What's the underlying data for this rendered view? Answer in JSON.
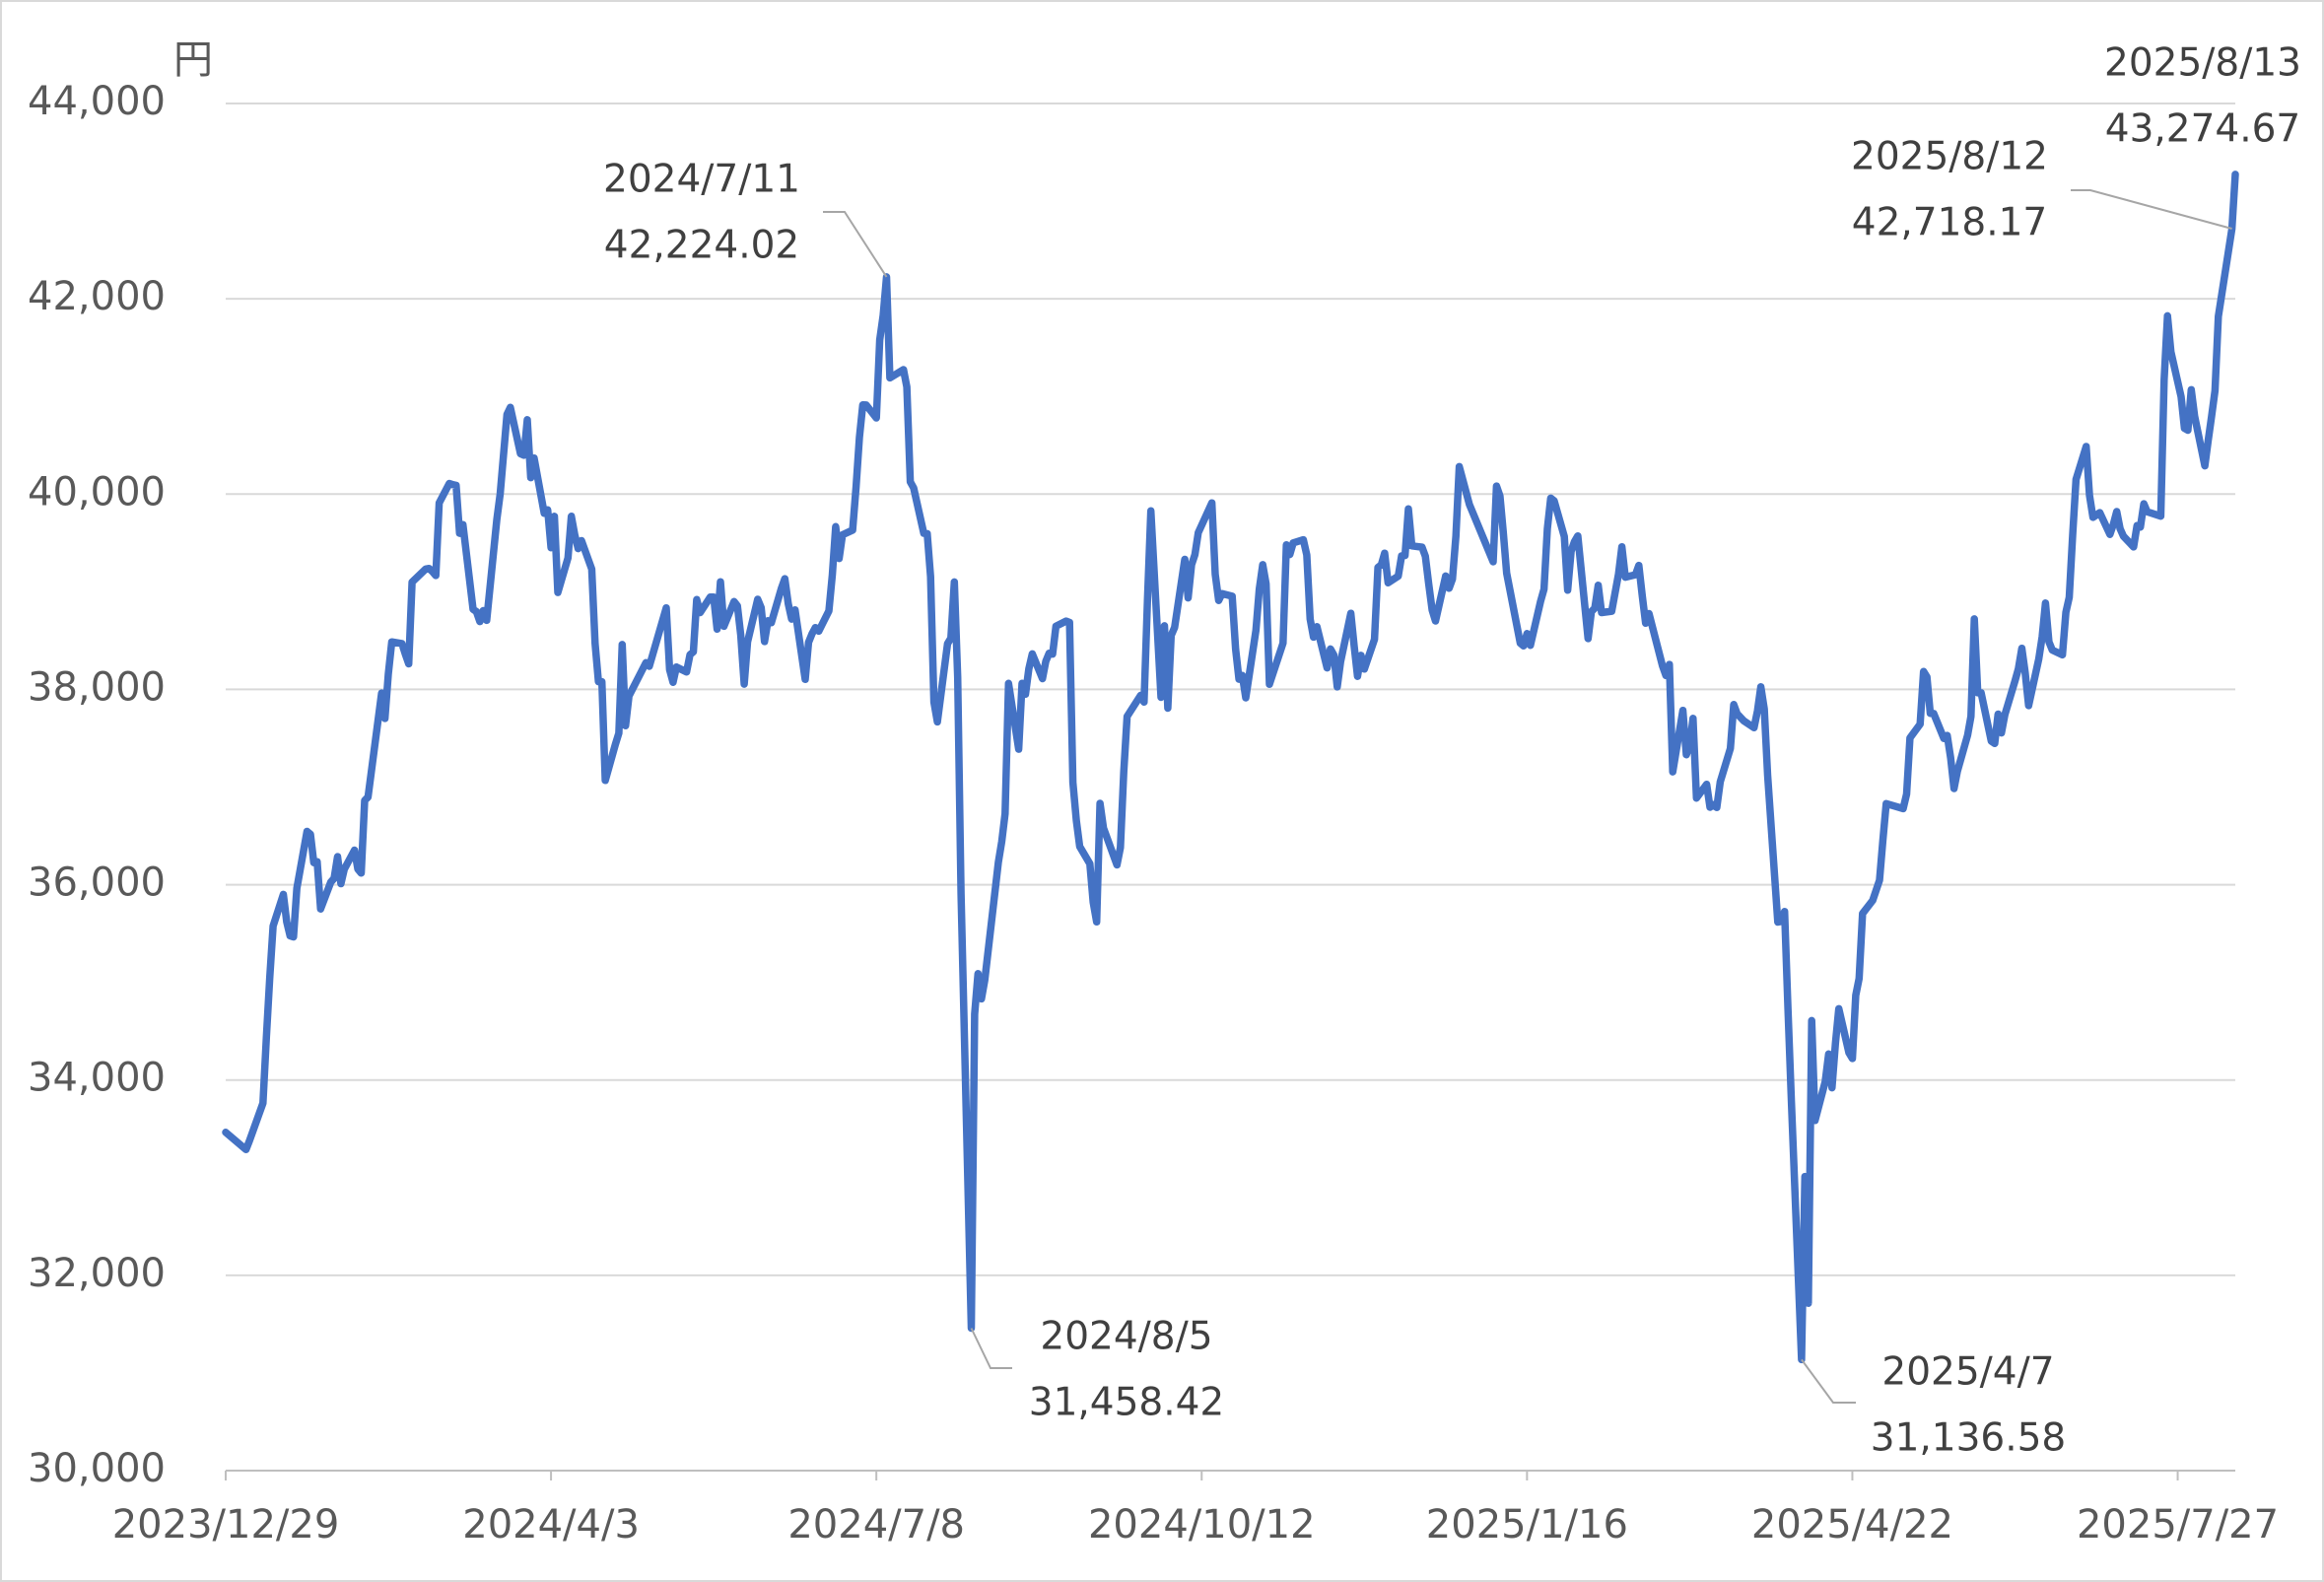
{
  "chart_data": {
    "type": "line",
    "y_label": "円",
    "x": [
      "2023/12/29",
      "2024/1/4",
      "2024/1/5",
      "2024/1/9",
      "2024/1/10",
      "2024/1/11",
      "2024/1/12",
      "2024/1/15",
      "2024/1/16",
      "2024/1/17",
      "2024/1/18",
      "2024/1/19",
      "2024/1/22",
      "2024/1/23",
      "2024/1/24",
      "2024/1/25",
      "2024/1/26",
      "2024/1/29",
      "2024/1/30",
      "2024/1/31",
      "2024/2/1",
      "2024/2/2",
      "2024/2/5",
      "2024/2/6",
      "2024/2/7",
      "2024/2/8",
      "2024/2/9",
      "2024/2/13",
      "2024/2/14",
      "2024/2/15",
      "2024/2/16",
      "2024/2/19",
      "2024/2/20",
      "2024/2/21",
      "2024/2/22",
      "2024/2/26",
      "2024/2/27",
      "2024/2/28",
      "2024/2/29",
      "2024/3/1",
      "2024/3/4",
      "2024/3/5",
      "2024/3/6",
      "2024/3/7",
      "2024/3/8",
      "2024/3/11",
      "2024/3/12",
      "2024/3/13",
      "2024/3/14",
      "2024/3/15",
      "2024/3/18",
      "2024/3/19",
      "2024/3/21",
      "2024/3/22",
      "2024/3/25",
      "2024/3/26",
      "2024/3/27",
      "2024/3/28",
      "2024/3/29",
      "2024/4/1",
      "2024/4/2",
      "2024/4/3",
      "2024/4/4",
      "2024/4/5",
      "2024/4/8",
      "2024/4/9",
      "2024/4/10",
      "2024/4/11",
      "2024/4/12",
      "2024/4/15",
      "2024/4/16",
      "2024/4/17",
      "2024/4/18",
      "2024/4/19",
      "2024/4/22",
      "2024/4/23",
      "2024/4/24",
      "2024/4/25",
      "2024/4/26",
      "2024/5/1",
      "2024/5/2",
      "2024/5/7",
      "2024/5/8",
      "2024/5/9",
      "2024/5/10",
      "2024/5/13",
      "2024/5/14",
      "2024/5/15",
      "2024/5/16",
      "2024/5/17",
      "2024/5/20",
      "2024/5/21",
      "2024/5/22",
      "2024/5/23",
      "2024/5/24",
      "2024/5/27",
      "2024/5/28",
      "2024/5/29",
      "2024/5/30",
      "2024/5/31",
      "2024/6/3",
      "2024/6/4",
      "2024/6/5",
      "2024/6/6",
      "2024/6/7",
      "2024/6/10",
      "2024/6/11",
      "2024/6/12",
      "2024/6/13",
      "2024/6/14",
      "2024/6/17",
      "2024/6/18",
      "2024/6/19",
      "2024/6/20",
      "2024/6/21",
      "2024/6/24",
      "2024/6/25",
      "2024/6/26",
      "2024/6/27",
      "2024/6/28",
      "2024/7/1",
      "2024/7/2",
      "2024/7/3",
      "2024/7/4",
      "2024/7/5",
      "2024/7/8",
      "2024/7/9",
      "2024/7/10",
      "2024/7/11",
      "2024/7/12",
      "2024/7/16",
      "2024/7/17",
      "2024/7/18",
      "2024/7/19",
      "2024/7/22",
      "2024/7/23",
      "2024/7/24",
      "2024/7/25",
      "2024/7/26",
      "2024/7/29",
      "2024/7/30",
      "2024/7/31",
      "2024/8/1",
      "2024/8/2",
      "2024/8/5",
      "2024/8/6",
      "2024/8/7",
      "2024/8/8",
      "2024/8/9",
      "2024/8/13",
      "2024/8/14",
      "2024/8/15",
      "2024/8/16",
      "2024/8/19",
      "2024/8/20",
      "2024/8/21",
      "2024/8/22",
      "2024/8/23",
      "2024/8/26",
      "2024/8/27",
      "2024/8/28",
      "2024/8/29",
      "2024/8/30",
      "2024/9/2",
      "2024/9/3",
      "2024/9/4",
      "2024/9/5",
      "2024/9/6",
      "2024/9/9",
      "2024/9/10",
      "2024/9/11",
      "2024/9/12",
      "2024/9/13",
      "2024/9/17",
      "2024/9/18",
      "2024/9/19",
      "2024/9/20",
      "2024/9/24",
      "2024/9/25",
      "2024/9/26",
      "2024/9/27",
      "2024/9/30",
      "2024/10/1",
      "2024/10/2",
      "2024/10/3",
      "2024/10/4",
      "2024/10/7",
      "2024/10/8",
      "2024/10/9",
      "2024/10/10",
      "2024/10/11",
      "2024/10/15",
      "2024/10/16",
      "2024/10/17",
      "2024/10/18",
      "2024/10/21",
      "2024/10/22",
      "2024/10/23",
      "2024/10/24",
      "2024/10/25",
      "2024/10/28",
      "2024/10/29",
      "2024/10/30",
      "2024/10/31",
      "2024/11/1",
      "2024/11/5",
      "2024/11/6",
      "2024/11/7",
      "2024/11/8",
      "2024/11/11",
      "2024/11/12",
      "2024/11/13",
      "2024/11/14",
      "2024/11/15",
      "2024/11/18",
      "2024/11/19",
      "2024/11/20",
      "2024/11/21",
      "2024/11/22",
      "2024/11/25",
      "2024/11/26",
      "2024/11/27",
      "2024/11/28",
      "2024/11/29",
      "2024/12/2",
      "2024/12/3",
      "2024/12/4",
      "2024/12/5",
      "2024/12/6",
      "2024/12/9",
      "2024/12/10",
      "2024/12/11",
      "2024/12/12",
      "2024/12/13",
      "2024/12/16",
      "2024/12/17",
      "2024/12/18",
      "2024/12/19",
      "2024/12/20",
      "2024/12/23",
      "2024/12/24",
      "2024/12/25",
      "2024/12/26",
      "2024/12/27",
      "2024/12/30",
      "2025/1/6",
      "2025/1/7",
      "2025/1/8",
      "2025/1/9",
      "2025/1/10",
      "2025/1/14",
      "2025/1/15",
      "2025/1/16",
      "2025/1/17",
      "2025/1/20",
      "2025/1/21",
      "2025/1/22",
      "2025/1/23",
      "2025/1/24",
      "2025/1/27",
      "2025/1/28",
      "2025/1/29",
      "2025/1/30",
      "2025/1/31",
      "2025/2/3",
      "2025/2/4",
      "2025/2/5",
      "2025/2/6",
      "2025/2/7",
      "2025/2/10",
      "2025/2/12",
      "2025/2/13",
      "2025/2/14",
      "2025/2/17",
      "2025/2/18",
      "2025/2/19",
      "2025/2/20",
      "2025/2/21",
      "2025/2/25",
      "2025/2/26",
      "2025/2/27",
      "2025/2/28",
      "2025/3/3",
      "2025/3/4",
      "2025/3/5",
      "2025/3/6",
      "2025/3/7",
      "2025/3/10",
      "2025/3/11",
      "2025/3/12",
      "2025/3/13",
      "2025/3/14",
      "2025/3/17",
      "2025/3/18",
      "2025/3/19",
      "2025/3/21",
      "2025/3/24",
      "2025/3/25",
      "2025/3/26",
      "2025/3/27",
      "2025/3/28",
      "2025/3/31",
      "2025/4/1",
      "2025/4/2",
      "2025/4/3",
      "2025/4/4",
      "2025/4/7",
      "2025/4/8",
      "2025/4/9",
      "2025/4/10",
      "2025/4/11",
      "2025/4/14",
      "2025/4/15",
      "2025/4/16",
      "2025/4/17",
      "2025/4/18",
      "2025/4/21",
      "2025/4/22",
      "2025/4/23",
      "2025/4/24",
      "2025/4/25",
      "2025/4/28",
      "2025/4/30",
      "2025/5/1",
      "2025/5/2",
      "2025/5/7",
      "2025/5/8",
      "2025/5/9",
      "2025/5/12",
      "2025/5/13",
      "2025/5/14",
      "2025/5/15",
      "2025/5/16",
      "2025/5/19",
      "2025/5/20",
      "2025/5/21",
      "2025/5/22",
      "2025/5/23",
      "2025/5/26",
      "2025/5/27",
      "2025/5/28",
      "2025/5/29",
      "2025/5/30",
      "2025/6/2",
      "2025/6/3",
      "2025/6/4",
      "2025/6/5",
      "2025/6/6",
      "2025/6/9",
      "2025/6/10",
      "2025/6/11",
      "2025/6/12",
      "2025/6/13",
      "2025/6/16",
      "2025/6/17",
      "2025/6/18",
      "2025/6/19",
      "2025/6/20",
      "2025/6/23",
      "2025/6/24",
      "2025/6/25",
      "2025/6/26",
      "2025/6/27",
      "2025/6/30",
      "2025/7/1",
      "2025/7/2",
      "2025/7/3",
      "2025/7/4",
      "2025/7/7",
      "2025/7/8",
      "2025/7/9",
      "2025/7/10",
      "2025/7/11",
      "2025/7/14",
      "2025/7/15",
      "2025/7/16",
      "2025/7/17",
      "2025/7/18",
      "2025/7/22",
      "2025/7/23",
      "2025/7/24",
      "2025/7/25",
      "2025/7/28",
      "2025/7/29",
      "2025/7/30",
      "2025/7/31",
      "2025/8/1",
      "2025/8/4",
      "2025/8/5",
      "2025/8/6",
      "2025/8/7",
      "2025/8/8",
      "2025/8/12",
      "2025/8/13"
    ],
    "series": [
      {
        "color": "#4472c4",
        "values": [
          33464,
          33288,
          33377,
          33763,
          34441,
          35049,
          35577,
          35901,
          35619,
          35477,
          35466,
          35963,
          36546,
          36517,
          36226,
          36236,
          35751,
          36026,
          36065,
          36287,
          36011,
          36158,
          36354,
          36160,
          36119,
          36863,
          36897,
          37963,
          37703,
          38157,
          38487,
          38470,
          38363,
          38262,
          39098,
          39233,
          39239,
          39208,
          39166,
          39910,
          40109,
          40097,
          40090,
          39598,
          39688,
          38820,
          38797,
          38695,
          38807,
          38707,
          39740,
          40003,
          40815,
          40888,
          40414,
          40398,
          40762,
          40168,
          40369,
          39803,
          39838,
          39451,
          39773,
          38992,
          39347,
          39773,
          39581,
          39442,
          39523,
          39232,
          38471,
          38079,
          38079,
          37068,
          37438,
          37552,
          38460,
          37628,
          37934,
          38274,
          38236,
          38835,
          38202,
          38073,
          38229,
          38179,
          38356,
          38385,
          38920,
          38787,
          38946,
          38946,
          38617,
          39103,
          38646,
          38900,
          38855,
          38556,
          38054,
          38487,
          38923,
          38837,
          38490,
          38703,
          38683,
          39038,
          39134,
          38876,
          38720,
          38814,
          38102,
          38482,
          38570,
          38633,
          38596,
          38804,
          39173,
          39667,
          39341,
          39583,
          39631,
          40074,
          40580,
          40913,
          40912,
          40780,
          41580,
          41831,
          42224.02,
          41190,
          41275,
          41097,
          40126,
          40063,
          39599,
          39594,
          39154,
          37869,
          37667,
          38468,
          38525,
          39101,
          38126,
          35909,
          31458.42,
          34675,
          35089,
          34831,
          35025,
          36232,
          36442,
          36726,
          38062,
          37388,
          38062,
          37951,
          38211,
          38364,
          38110,
          38288,
          38371,
          38362,
          38647,
          38700,
          38686,
          37047,
          36657,
          36391,
          36215,
          35819,
          35619,
          36833,
          36581,
          36203,
          36380,
          37155,
          37723,
          37940,
          37870,
          38925,
          39829,
          37919,
          38651,
          37808,
          38552,
          38635,
          39332,
          38937,
          39277,
          39380,
          39605,
          39910,
          39180,
          38911,
          38981,
          38954,
          38411,
          38104,
          38143,
          37913,
          38605,
          39027,
          39277,
          39081,
          38053,
          38474,
          39480,
          39381,
          39500,
          39533,
          39376,
          38721,
          38535,
          38642,
          38220,
          38414,
          38352,
          38026,
          38283,
          38780,
          38442,
          38134,
          38349,
          38208,
          38513,
          39249,
          39276,
          39395,
          39091,
          39160,
          39367,
          39372,
          39849,
          39470,
          39457,
          39364,
          39081,
          38813,
          38701,
          39161,
          39036,
          39130,
          39568,
          40281,
          39894,
          39307,
          40083,
          39981,
          39605,
          39190,
          38474,
          38445,
          38572,
          38451,
          38902,
          39027,
          39646,
          39958,
          39931,
          39566,
          39016,
          39414,
          39513,
          39572,
          38520,
          38798,
          38831,
          39066,
          38787,
          38801,
          39181,
          39461,
          39149,
          39174,
          39270,
          38957,
          38678,
          38776,
          38237,
          38142,
          38256,
          37155,
          37785,
          37331,
          37418,
          37704,
          36887,
          37028,
          36793,
          36819,
          36790,
          37053,
          37396,
          37845,
          37751,
          37677,
          37608,
          37780,
          38027,
          37799,
          37120,
          35617,
          35624,
          35725,
          34735,
          33780,
          31136.58,
          33012,
          31714,
          34609,
          33585,
          33982,
          34267,
          33920,
          34377,
          34730,
          34279,
          34220,
          34868,
          35039,
          35705,
          35839,
          36045,
          36452,
          36830,
          36779,
          36928,
          37503,
          37644,
          38183,
          38128,
          37755,
          37753,
          37498,
          37529,
          37298,
          36985,
          37160,
          37531,
          37724,
          38722,
          37965,
          37965,
          37470,
          37446,
          37747,
          37554,
          37741,
          38088,
          38211,
          38421,
          38173,
          37834,
          38311,
          38536,
          38885,
          38488,
          38403,
          38354,
          38790,
          38942,
          39584,
          40150,
          40487,
          39986,
          39762,
          39785,
          39810,
          39587,
          39688,
          39821,
          39646,
          39569,
          39459,
          39678,
          39663,
          39901,
          39819,
          39774,
          41171,
          41826,
          41456,
          40998,
          40674,
          40654,
          41069,
          40799,
          40290,
          40549,
          40794,
          41059,
          41820,
          42718.17,
          43274.67
        ]
      }
    ],
    "xlim": [
      "2023/12/29",
      "2025/8/13"
    ],
    "xticks": [
      "2023/12/29",
      "2024/4/3",
      "2024/7/8",
      "2024/10/12",
      "2025/1/16",
      "2025/4/22",
      "2025/7/27"
    ],
    "ylim": [
      30000,
      44000
    ],
    "yticks": [
      {
        "value": 30000,
        "label": "30,000"
      },
      {
        "value": 32000,
        "label": "32,000"
      },
      {
        "value": 34000,
        "label": "34,000"
      },
      {
        "value": 36000,
        "label": "36,000"
      },
      {
        "value": 38000,
        "label": "38,000"
      },
      {
        "value": 40000,
        "label": "40,000"
      },
      {
        "value": 42000,
        "label": "42,000"
      },
      {
        "value": 44000,
        "label": "44,000"
      }
    ],
    "grid": true,
    "annotations": [
      {
        "x": "2024/7/11",
        "y": 42224.02,
        "lines": [
          "2024/7/11",
          "42,224.02"
        ]
      },
      {
        "x": "2024/8/5",
        "y": 31458.42,
        "lines": [
          "2024/8/5",
          "31,458.42"
        ]
      },
      {
        "x": "2025/4/7",
        "y": 31136.58,
        "lines": [
          "2025/4/7",
          "31,136.58"
        ]
      },
      {
        "x": "2025/8/12",
        "y": 42718.17,
        "lines": [
          "2025/8/12",
          "42,718.17"
        ]
      },
      {
        "x": "2025/8/13",
        "y": 43274.67,
        "lines": [
          "2025/8/13",
          "43,274.67"
        ]
      }
    ]
  }
}
